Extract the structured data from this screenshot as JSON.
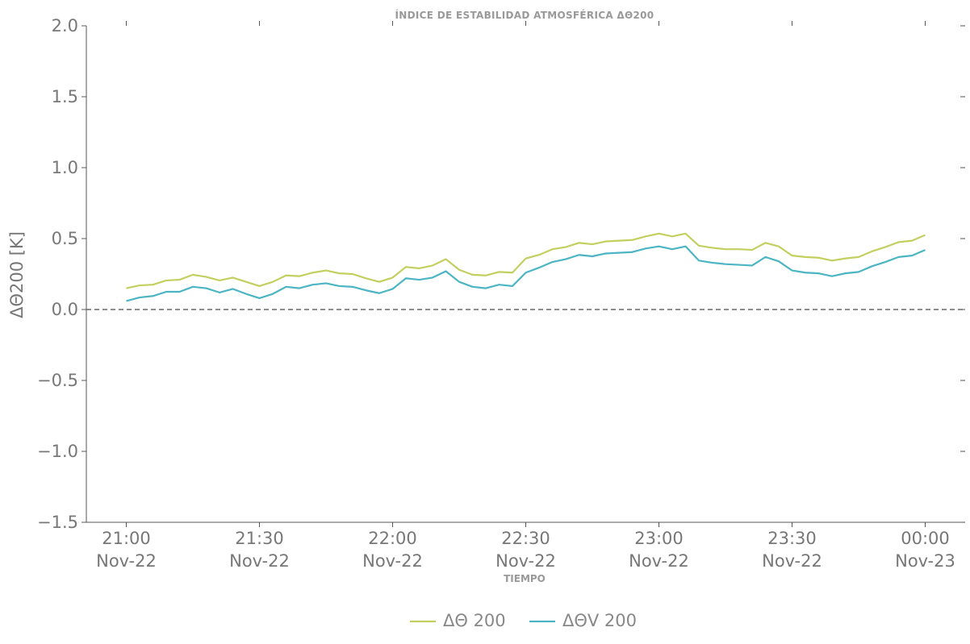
{
  "chart_data": {
    "type": "line",
    "title": "ÍNDICE DE ESTABILIDAD ATMOSFÉRICA ΔΘ200",
    "xlabel": "TIEMPO",
    "ylabel": "ΔΘ200 [K]",
    "ylim": [
      -1.5,
      2.0
    ],
    "yticks": [
      2.0,
      1.5,
      1.0,
      0.5,
      0.0,
      -0.5,
      -1.0,
      -1.5
    ],
    "ytick_labels": [
      "2.0",
      "1.5",
      "1.0",
      "0.5",
      "0.0",
      "−0.5",
      "−1.0",
      "−1.5"
    ],
    "xlim_minutes": [
      -3,
      63
    ],
    "xticks": [
      {
        "minutes": 0,
        "time": "21:00",
        "date": "Nov-22"
      },
      {
        "minutes": 10,
        "time": "21:30",
        "date": "Nov-22"
      },
      {
        "minutes": 20,
        "time": "22:00",
        "date": "Nov-22"
      },
      {
        "minutes": 30,
        "time": "22:30",
        "date": "Nov-22"
      },
      {
        "minutes": 40,
        "time": "23:00",
        "date": "Nov-22"
      },
      {
        "minutes": 50,
        "time": "23:30",
        "date": "Nov-22"
      },
      {
        "minutes": 60,
        "time": "00:00",
        "date": "Nov-23"
      }
    ],
    "reference_line": {
      "y": 0.0,
      "style": "dashed",
      "color": "#666666"
    },
    "x_interval_minutes": 3,
    "series": [
      {
        "name": "ΔΘ 200",
        "color": "#c3cf5e",
        "values": [
          0.15,
          0.17,
          0.175,
          0.205,
          0.21,
          0.245,
          0.23,
          0.205,
          0.225,
          0.195,
          0.165,
          0.195,
          0.24,
          0.235,
          0.26,
          0.275,
          0.255,
          0.25,
          0.22,
          0.195,
          0.225,
          0.3,
          0.29,
          0.31,
          0.355,
          0.28,
          0.245,
          0.24,
          0.265,
          0.26,
          0.36,
          0.385,
          0.425,
          0.44,
          0.47,
          0.46,
          0.48,
          0.485,
          0.49,
          0.515,
          0.535,
          0.515,
          0.535,
          0.45,
          0.435,
          0.425,
          0.425,
          0.42,
          0.47,
          0.445,
          0.38,
          0.37,
          0.365,
          0.345,
          0.36,
          0.37,
          0.41,
          0.44,
          0.475,
          0.485,
          0.525
        ]
      },
      {
        "name": "ΔΘV 200",
        "color": "#4cb5c3",
        "values": [
          0.06,
          0.085,
          0.095,
          0.125,
          0.125,
          0.16,
          0.15,
          0.12,
          0.145,
          0.11,
          0.08,
          0.11,
          0.16,
          0.15,
          0.175,
          0.185,
          0.165,
          0.16,
          0.135,
          0.115,
          0.145,
          0.22,
          0.21,
          0.225,
          0.27,
          0.195,
          0.16,
          0.15,
          0.175,
          0.165,
          0.26,
          0.295,
          0.335,
          0.355,
          0.385,
          0.375,
          0.395,
          0.4,
          0.405,
          0.43,
          0.445,
          0.425,
          0.445,
          0.345,
          0.33,
          0.32,
          0.315,
          0.31,
          0.37,
          0.34,
          0.275,
          0.26,
          0.255,
          0.235,
          0.255,
          0.265,
          0.305,
          0.335,
          0.37,
          0.38,
          0.42
        ]
      }
    ],
    "legend_position": "bottom-center",
    "grid": false
  }
}
